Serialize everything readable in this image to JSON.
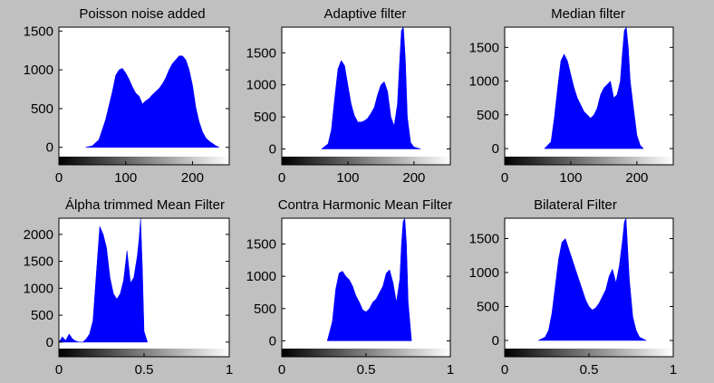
{
  "figure": {
    "background": "#c0c0c0",
    "bar_color": "#0000ff"
  },
  "chart_data": [
    {
      "type": "bar",
      "title": "Poisson noise added",
      "xlim": [
        0,
        255
      ],
      "ylim": [
        -120,
        1550
      ],
      "xticks": [
        0,
        100,
        200
      ],
      "xtick_labels": [
        "0",
        "100",
        "200"
      ],
      "yticks": [
        0,
        500,
        1000,
        1500
      ],
      "ytick_labels": [
        "0",
        "500",
        "1000",
        "1500"
      ],
      "colorbar": true,
      "series": [
        {
          "x": [
            40,
            50,
            60,
            70,
            80,
            85,
            90,
            95,
            100,
            105,
            110,
            115,
            120,
            125,
            130,
            135,
            140,
            145,
            150,
            155,
            160,
            165,
            170,
            175,
            180,
            185,
            190,
            195,
            200,
            205,
            210,
            215,
            220,
            225,
            230,
            235,
            240
          ],
          "y": [
            0,
            20,
            100,
            360,
            720,
            930,
            1000,
            1020,
            960,
            880,
            780,
            700,
            660,
            560,
            600,
            630,
            680,
            720,
            760,
            820,
            900,
            1000,
            1080,
            1130,
            1180,
            1180,
            1130,
            1000,
            800,
            520,
            330,
            200,
            120,
            80,
            50,
            20,
            0
          ]
        }
      ]
    },
    {
      "type": "bar",
      "title": "Adaptive filter",
      "xlim": [
        0,
        255
      ],
      "ylim": [
        -120,
        1900
      ],
      "xticks": [
        0,
        100,
        200
      ],
      "xtick_labels": [
        "0",
        "100",
        "200"
      ],
      "yticks": [
        0,
        500,
        1000,
        1500
      ],
      "ytick_labels": [
        "0",
        "500",
        "1000",
        "1500"
      ],
      "colorbar": true,
      "series": [
        {
          "x": [
            60,
            70,
            75,
            80,
            85,
            90,
            95,
            100,
            105,
            110,
            115,
            120,
            125,
            130,
            135,
            140,
            145,
            150,
            155,
            160,
            165,
            170,
            175,
            178,
            181,
            184,
            187,
            190,
            195,
            200,
            210
          ],
          "y": [
            0,
            80,
            300,
            800,
            1250,
            1380,
            1300,
            1000,
            700,
            520,
            420,
            420,
            440,
            480,
            560,
            650,
            850,
            1000,
            1050,
            900,
            500,
            360,
            700,
            1300,
            1850,
            1900,
            1400,
            500,
            100,
            30,
            0
          ]
        }
      ]
    },
    {
      "type": "bar",
      "title": "Median filter",
      "xlim": [
        0,
        255
      ],
      "ylim": [
        -120,
        1800
      ],
      "xticks": [
        0,
        100,
        200
      ],
      "xtick_labels": [
        "0",
        "100",
        "200"
      ],
      "yticks": [
        0,
        500,
        1000,
        1500
      ],
      "ytick_labels": [
        "0",
        "500",
        "1000",
        "1500"
      ],
      "colorbar": true,
      "series": [
        {
          "x": [
            60,
            70,
            75,
            80,
            85,
            90,
            95,
            100,
            105,
            110,
            115,
            120,
            125,
            130,
            135,
            140,
            145,
            150,
            155,
            160,
            165,
            170,
            175,
            178,
            181,
            184,
            187,
            190,
            195,
            200,
            205,
            210
          ],
          "y": [
            0,
            100,
            450,
            900,
            1300,
            1400,
            1300,
            1100,
            900,
            750,
            650,
            550,
            500,
            450,
            500,
            600,
            800,
            900,
            950,
            1000,
            750,
            800,
            1000,
            1400,
            1750,
            1800,
            1500,
            1000,
            600,
            200,
            50,
            0
          ]
        }
      ]
    },
    {
      "type": "bar",
      "title": "Álpha trimmed Mean Filter",
      "xlim": [
        0,
        1
      ],
      "ylim": [
        -120,
        2300
      ],
      "xticks": [
        0,
        0.5,
        1
      ],
      "xtick_labels": [
        "0",
        "0.5",
        "1"
      ],
      "yticks": [
        0,
        500,
        1000,
        1500,
        2000
      ],
      "ytick_labels": [
        "0",
        "500",
        "1000",
        "1500",
        "2000"
      ],
      "colorbar": true,
      "series": [
        {
          "x": [
            0,
            0.02,
            0.04,
            0.06,
            0.08,
            0.1,
            0.12,
            0.14,
            0.16,
            0.18,
            0.2,
            0.22,
            0.24,
            0.26,
            0.28,
            0.3,
            0.32,
            0.34,
            0.36,
            0.38,
            0.4,
            0.42,
            0.44,
            0.46,
            0.47,
            0.48,
            0.49,
            0.5,
            0.52
          ],
          "y": [
            0,
            100,
            30,
            150,
            60,
            20,
            0,
            0,
            60,
            150,
            400,
            1300,
            2150,
            2000,
            1750,
            1200,
            900,
            800,
            900,
            1150,
            1700,
            1100,
            1200,
            1600,
            1900,
            2300,
            1400,
            200,
            0
          ]
        }
      ]
    },
    {
      "type": "bar",
      "title": "Contra Harmonic Mean Filter",
      "xlim": [
        0,
        1
      ],
      "ylim": [
        -120,
        1900
      ],
      "xticks": [
        0,
        0.5,
        1
      ],
      "xtick_labels": [
        "0",
        "0.5",
        "1"
      ],
      "yticks": [
        0,
        500,
        1000,
        1500
      ],
      "ytick_labels": [
        "0",
        "500",
        "1000",
        "1500"
      ],
      "colorbar": true,
      "series": [
        {
          "x": [
            0.27,
            0.3,
            0.32,
            0.34,
            0.36,
            0.38,
            0.4,
            0.42,
            0.44,
            0.46,
            0.48,
            0.5,
            0.52,
            0.54,
            0.56,
            0.58,
            0.6,
            0.62,
            0.64,
            0.66,
            0.68,
            0.7,
            0.71,
            0.72,
            0.73,
            0.74,
            0.75,
            0.77
          ],
          "y": [
            0,
            300,
            800,
            1050,
            1080,
            1000,
            950,
            850,
            700,
            600,
            480,
            450,
            500,
            600,
            650,
            750,
            850,
            1050,
            1100,
            900,
            600,
            950,
            1500,
            1850,
            1900,
            1500,
            600,
            0
          ]
        }
      ]
    },
    {
      "type": "bar",
      "title": "Bilateral Filter",
      "xlim": [
        0,
        1
      ],
      "ylim": [
        -120,
        1800
      ],
      "xticks": [
        0,
        0.5,
        1
      ],
      "xtick_labels": [
        "0",
        "0.5",
        "1"
      ],
      "yticks": [
        0,
        500,
        1000,
        1500
      ],
      "ytick_labels": [
        "0",
        "500",
        "1000",
        "1500"
      ],
      "colorbar": true,
      "series": [
        {
          "x": [
            0.2,
            0.24,
            0.26,
            0.28,
            0.3,
            0.32,
            0.34,
            0.36,
            0.38,
            0.4,
            0.42,
            0.44,
            0.46,
            0.48,
            0.5,
            0.52,
            0.54,
            0.56,
            0.58,
            0.6,
            0.62,
            0.64,
            0.66,
            0.68,
            0.7,
            0.71,
            0.72,
            0.74,
            0.76,
            0.78,
            0.8,
            0.84
          ],
          "y": [
            0,
            50,
            150,
            400,
            800,
            1200,
            1450,
            1500,
            1350,
            1200,
            1050,
            900,
            750,
            600,
            500,
            450,
            480,
            550,
            650,
            750,
            950,
            1050,
            850,
            1100,
            1500,
            1750,
            1800,
            900,
            350,
            150,
            50,
            0
          ]
        }
      ]
    }
  ]
}
